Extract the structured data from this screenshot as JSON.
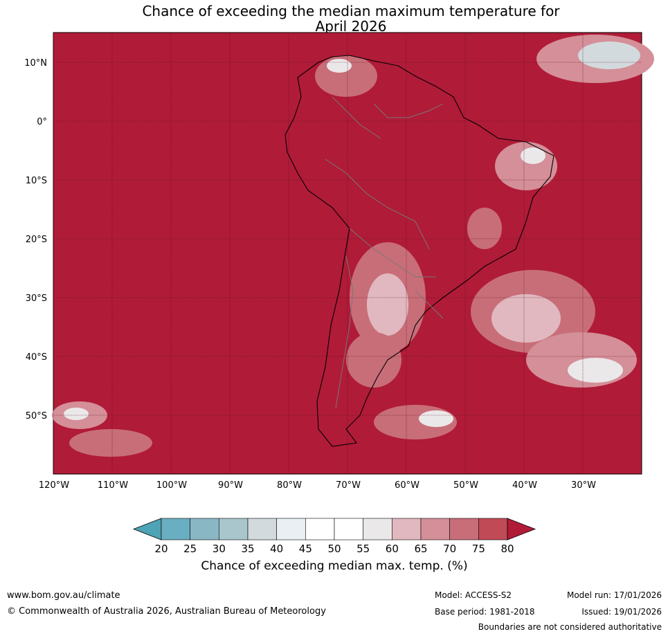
{
  "title": {
    "line1": "Chance of exceeding the median maximum temperature for",
    "line2": "April 2026"
  },
  "map": {
    "region": "South America",
    "lat_labels": [
      "10°N",
      "0°",
      "10°S",
      "20°S",
      "30°S",
      "40°S",
      "50°S"
    ],
    "lon_labels": [
      "120°W",
      "110°W",
      "100°W",
      "90°W",
      "80°W",
      "70°W",
      "60°W",
      "50°W",
      "40°W",
      "30°W"
    ],
    "background_color": "#b01b38"
  },
  "colorbar": {
    "ticks": [
      "20",
      "25",
      "30",
      "35",
      "40",
      "45",
      "50",
      "55",
      "60",
      "65",
      "70",
      "75",
      "80"
    ],
    "colors": [
      "#4ea3b5",
      "#6aaec1",
      "#89b7c4",
      "#a8c6cc",
      "#d2dadd",
      "#e9eff2",
      "#ffffff",
      "#ffffff",
      "#ebe8ea",
      "#e1b8bf",
      "#d48f98",
      "#c86e79",
      "#c04a56",
      "#b01b38"
    ],
    "title": "Chance of exceeding median max. temp. (%)"
  },
  "footer": {
    "website": "www.bom.gov.au/climate",
    "copyright": "© Commonwealth of Australia 2026, Australian Bureau of Meteorology",
    "model": "Model: ACCESS-S2",
    "base_period": "Base period: 1981-2018",
    "model_run": "Model run: 17/01/2026",
    "issued": "Issued: 19/01/2026",
    "disclaimer": "Boundaries are not considered authoritative"
  }
}
